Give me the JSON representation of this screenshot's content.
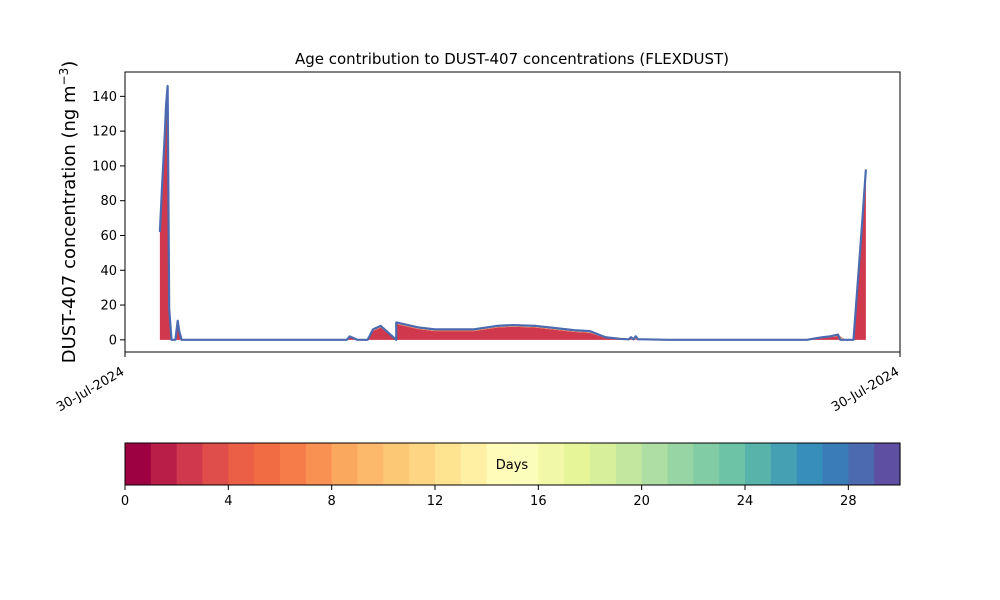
{
  "chart_data": [
    {
      "type": "area",
      "title": "Age contribution to DUST-407 concentrations (FLEXDUST)",
      "ylabel_main": "DUST-407 concentration (ng m",
      "ylabel_exp": "−3",
      "ylabel_close": ")",
      "xlabel": "",
      "ylim": [
        -7,
        154
      ],
      "yticks": [
        0,
        20,
        40,
        60,
        80,
        100,
        120,
        140
      ],
      "xlim": [
        0,
        100
      ],
      "xtick_labels": [
        "30-Jul-2024",
        "30-Jul-2024"
      ],
      "grid": false,
      "x": [
        4.5,
        4.8,
        5.1,
        5.3,
        5.5,
        5.7,
        6.0,
        6.5,
        6.8,
        7.0,
        7.3,
        8.0,
        9.0,
        15.0,
        25.0,
        30.0,
        35.0,
        28.0,
        28.6,
        28.8,
        29.0,
        30.0,
        31.0,
        31.3,
        32.0,
        33.0,
        35.0,
        38.0,
        40.0,
        43.0,
        45.0,
        48.0,
        50.0,
        53.0,
        55.0,
        56.0,
        57.0,
        58.0,
        60.0,
        62.0,
        64.0,
        65.0,
        65.3,
        65.6,
        65.9,
        66.2,
        67.0,
        70.0,
        80.0,
        88.0,
        89.0,
        90.0,
        91.0,
        92.0,
        92.3,
        93.0,
        94.0,
        95.0,
        95.6
      ],
      "series": [
        {
          "values": [
            62,
            90,
            115,
            135,
            146,
            18,
            0,
            0,
            10,
            5,
            0,
            0,
            0,
            0,
            0,
            0,
            0,
            0,
            0,
            1,
            2,
            0,
            0,
            0,
            5,
            7,
            9,
            6,
            5,
            5,
            5,
            7,
            7.5,
            7,
            6,
            5.5,
            5,
            4.5,
            4,
            1,
            0.5,
            0.3,
            0.3,
            0.3,
            0.3,
            0.3,
            0.3,
            0,
            0,
            0,
            0.5,
            1,
            1.5,
            2,
            2,
            0,
            0,
            60,
            97
          ]
        }
      ],
      "stack_top_values": [
        62,
        90,
        115,
        135,
        146,
        18,
        0,
        0,
        11,
        5,
        0,
        0,
        0,
        0,
        0,
        0,
        0,
        0,
        0,
        1,
        2,
        0,
        0,
        0,
        6,
        8,
        10,
        7,
        6,
        6,
        6,
        8,
        8.5,
        8,
        7,
        6.5,
        6,
        5.5,
        5,
        1.5,
        0.5,
        0.3,
        1.5,
        0.3,
        2,
        0.3,
        0.3,
        0,
        0,
        0,
        0.8,
        1.5,
        2,
        3,
        0,
        0,
        0,
        60,
        98
      ]
    },
    {
      "type": "heatmap",
      "label": "Days",
      "range": [
        0,
        30
      ],
      "ticks": [
        0,
        4,
        8,
        12,
        16,
        20,
        24,
        28
      ],
      "colors": [
        "#9e0142",
        "#b91e48",
        "#d0384d",
        "#df4e4b",
        "#ea5f45",
        "#f26c43",
        "#f67c4a",
        "#f99153",
        "#fba85f",
        "#fdb96b",
        "#fdc876",
        "#fed683",
        "#fee391",
        "#fff0a3",
        "#fffbb8",
        "#fbfdba",
        "#f1f9a9",
        "#e6f598",
        "#d7ef9b",
        "#c3e79e",
        "#aedea4",
        "#98d5a4",
        "#82cca5",
        "#6cc3a5",
        "#58b3ab",
        "#46a0b4",
        "#378ebb",
        "#3a7cb8",
        "#4b6aaf",
        "#5e4fa2"
      ]
    }
  ]
}
